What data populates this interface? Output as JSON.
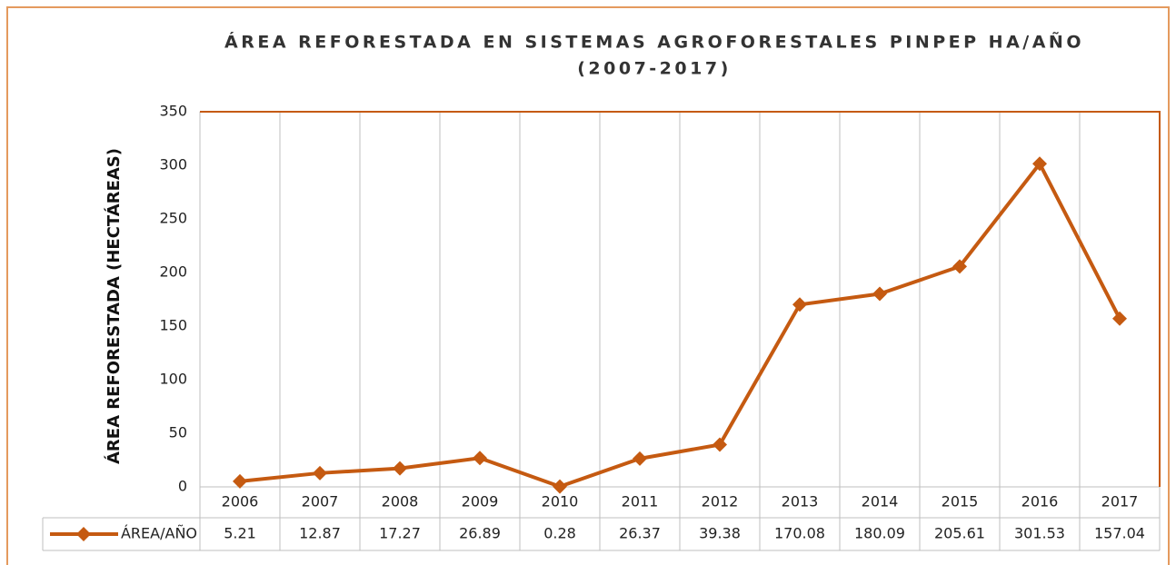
{
  "chart_data": {
    "type": "line",
    "title": [
      "ÁREA REFORESTADA EN SISTEMAS AGROFORESTALES PINPEP HA/AÑO",
      "(2007-2017)"
    ],
    "y_label": "ÁREA REFORESTADA (HECTÁREAS)",
    "categories": [
      "2006",
      "2007",
      "2008",
      "2009",
      "2010",
      "2011",
      "2012",
      "2013",
      "2014",
      "2015",
      "2016",
      "2017"
    ],
    "series": [
      {
        "name": "ÁREA/AÑO",
        "color": "#c55a11",
        "values": [
          5.21,
          12.87,
          17.27,
          26.89,
          0.28,
          26.37,
          39.38,
          170.08,
          180.09,
          205.61,
          301.53,
          157.04
        ]
      }
    ],
    "ylim": [
      0,
      350
    ],
    "yticks": [
      0,
      50,
      100,
      150,
      200,
      250,
      300,
      350
    ]
  }
}
